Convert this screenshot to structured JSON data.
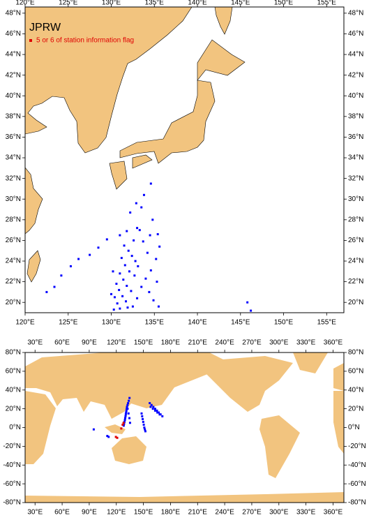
{
  "chart_data": [
    {
      "type": "map",
      "title": "JPRW",
      "flag_legend": {
        "label": "5 or 6 of station information flag",
        "color": "#e00000"
      },
      "xlim": [
        120,
        157
      ],
      "ylim": [
        19,
        48.6
      ],
      "xticks": [
        {
          "value": 120,
          "label": "120°E"
        },
        {
          "value": 125,
          "label": "125°E"
        },
        {
          "value": 130,
          "label": "130°E"
        },
        {
          "value": 135,
          "label": "135°E"
        },
        {
          "value": 140,
          "label": "140°E"
        },
        {
          "value": 145,
          "label": "145°E"
        },
        {
          "value": 150,
          "label": "150°E"
        },
        {
          "value": 155,
          "label": "155°E"
        }
      ],
      "yticks": [
        {
          "value": 20,
          "label": "20°N"
        },
        {
          "value": 22,
          "label": "22°N"
        },
        {
          "value": 24,
          "label": "24°N"
        },
        {
          "value": 26,
          "label": "26°N"
        },
        {
          "value": 28,
          "label": "28°N"
        },
        {
          "value": 30,
          "label": "30°N"
        },
        {
          "value": 32,
          "label": "32°N"
        },
        {
          "value": 34,
          "label": "34°N"
        },
        {
          "value": 36,
          "label": "36°N"
        },
        {
          "value": 38,
          "label": "38°N"
        },
        {
          "value": 40,
          "label": "40°N"
        },
        {
          "value": 42,
          "label": "42°N"
        },
        {
          "value": 44,
          "label": "44°N"
        },
        {
          "value": 46,
          "label": "46°N"
        },
        {
          "value": 48,
          "label": "48°N"
        }
      ],
      "series": [
        {
          "color": "#0000ff",
          "x": [
            134.6,
            133.8,
            132.9,
            133.5,
            132.2,
            134.8,
            133.0,
            133.3,
            135.4,
            134.5,
            131.8,
            131.0,
            129.5,
            128.5,
            127.5,
            126.2,
            125.3,
            124.2,
            123.4,
            122.5,
            131.5,
            132.0,
            132.4,
            132.8,
            131.2,
            131.6,
            132.1,
            132.7,
            131.0,
            131.4,
            131.8,
            132.3,
            130.6,
            130.9,
            131.3,
            131.7,
            130.4,
            130.7,
            131.0,
            132.5,
            133.0,
            133.5,
            134.0,
            134.6,
            135.2,
            135.6,
            134.2,
            133.7,
            134.9,
            134.4,
            135.3,
            145.8,
            146.2,
            130.3,
            131.9,
            133.1,
            132.6,
            130.2,
            130.0,
            135.5
          ],
          "y": [
            31.5,
            30.4,
            29.6,
            29.2,
            28.7,
            28.0,
            27.2,
            27.0,
            26.6,
            26.5,
            26.9,
            26.5,
            26.1,
            25.3,
            24.6,
            24.2,
            23.5,
            22.6,
            21.5,
            21.0,
            25.5,
            25.0,
            24.5,
            24.0,
            24.3,
            23.6,
            23.0,
            22.6,
            22.8,
            22.2,
            21.6,
            21.1,
            21.8,
            21.2,
            20.6,
            20.1,
            20.5,
            19.9,
            19.4,
            19.6,
            20.4,
            21.5,
            22.3,
            23.1,
            24.2,
            25.4,
            24.8,
            25.9,
            20.2,
            21.0,
            22.0,
            20.0,
            19.2,
            19.3,
            19.5,
            23.5,
            26.0,
            23.0,
            20.8,
            19.6
          ]
        }
      ]
    },
    {
      "type": "map",
      "xlim": [
        19,
        372
      ],
      "ylim": [
        -80,
        80
      ],
      "xticks": [
        {
          "value": 30,
          "label": "30°E"
        },
        {
          "value": 60,
          "label": "60°E"
        },
        {
          "value": 90,
          "label": "90°E"
        },
        {
          "value": 120,
          "label": "120°E"
        },
        {
          "value": 150,
          "label": "150°E"
        },
        {
          "value": 180,
          "label": "180°E"
        },
        {
          "value": 210,
          "label": "210°E"
        },
        {
          "value": 240,
          "label": "240°E"
        },
        {
          "value": 270,
          "label": "270°E"
        },
        {
          "value": 300,
          "label": "300°E"
        },
        {
          "value": 330,
          "label": "330°E"
        },
        {
          "value": 360,
          "label": "360°E"
        }
      ],
      "yticks": [
        {
          "value": -80,
          "label": "-80°N"
        },
        {
          "value": -60,
          "label": "-60°N"
        },
        {
          "value": -40,
          "label": "-40°N"
        },
        {
          "value": -20,
          "label": "-20°N"
        },
        {
          "value": 0,
          "label": "0°N"
        },
        {
          "value": 20,
          "label": "20°N"
        },
        {
          "value": 40,
          "label": "40°N"
        },
        {
          "value": 60,
          "label": "60°N"
        },
        {
          "value": 80,
          "label": "80°N"
        }
      ],
      "series": [
        {
          "color": "#0000ff",
          "x": [
            134.6,
            133.8,
            133.0,
            132.4,
            131.8,
            131.5,
            131.2,
            130.8,
            130.5,
            130.2,
            129.8,
            129.5,
            129.0,
            128.6,
            128.2,
            132.5,
            133.5,
            134.5,
            135.2,
            148.0,
            148.6,
            149.2,
            149.8,
            150.4,
            151.0,
            151.6,
            152.2,
            157.0,
            159.0,
            161.0,
            163.0,
            165.0,
            167.0,
            169.0,
            171.0,
            158.0,
            160.5,
            163.0,
            165.5,
            168.0,
            95.0,
            110.0,
            111.5
          ],
          "y": [
            31.5,
            28.5,
            26.0,
            24.0,
            22.0,
            20.0,
            18.0,
            16.0,
            14.0,
            12.0,
            10.0,
            8.0,
            6.0,
            4.0,
            2.0,
            20.0,
            15.0,
            10.0,
            5.0,
            15.0,
            12.0,
            9.0,
            6.0,
            3.0,
            0.0,
            -2.0,
            -4.0,
            26.0,
            24.0,
            22.0,
            20.0,
            18.0,
            16.0,
            14.0,
            12.0,
            22.0,
            20.0,
            18.0,
            16.0,
            14.0,
            -2.0,
            -9.0,
            -10.0
          ]
        },
        {
          "color": "#e00000",
          "x": [
            128.0,
            127.0,
            125.5,
            119.5,
            121.0
          ],
          "y": [
            5.0,
            3.0,
            -1.0,
            -10.0,
            -11.0
          ]
        }
      ]
    }
  ]
}
